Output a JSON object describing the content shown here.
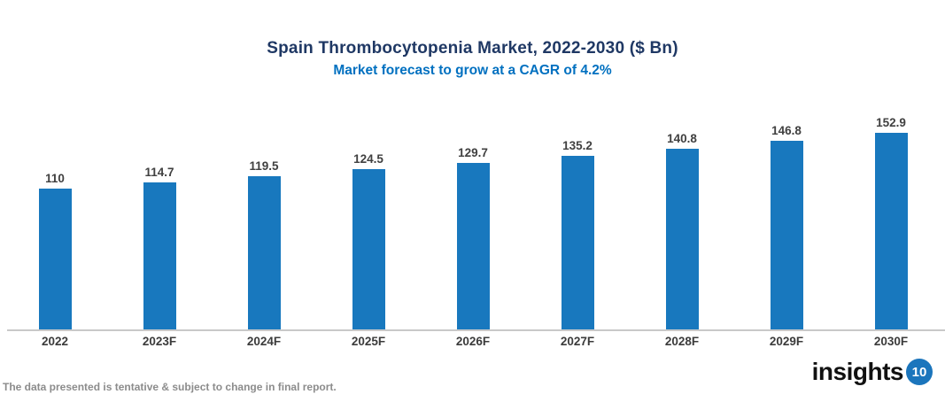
{
  "header": {
    "title": "Spain Thrombocytopenia Market, 2022-2030 ($ Bn)",
    "subtitle": "Market forecast to grow at a CAGR of 4.2%"
  },
  "chart_data": {
    "type": "bar",
    "categories": [
      "2022",
      "2023F",
      "2024F",
      "2025F",
      "2026F",
      "2027F",
      "2028F",
      "2029F",
      "2030F"
    ],
    "values": [
      110,
      114.7,
      119.5,
      124.5,
      129.7,
      135.2,
      140.8,
      146.8,
      152.9
    ],
    "title": "Spain Thrombocytopenia Market, 2022-2030 ($ Bn)",
    "subtitle": "Market forecast to grow at a CAGR of 4.2%",
    "xlabel": "",
    "ylabel": "",
    "ylim": [
      0,
      160
    ],
    "grid": false,
    "legend": false,
    "value_labels_shown": true,
    "bar_color": "#1878BE"
  },
  "colors": {
    "title": "#1F3864",
    "subtitle": "#0070C0",
    "bar": "#1878BE",
    "axis_line": "#C9C9C9",
    "value_label": "#404040",
    "x_label": "#3B3B3B",
    "footer_text": "#8C8C8C",
    "logo_badge": "#1B75BC"
  },
  "footer": {
    "disclaimer": "The data presented is tentative & subject to change in final report.",
    "logo_text": "insights",
    "logo_badge": "10"
  }
}
